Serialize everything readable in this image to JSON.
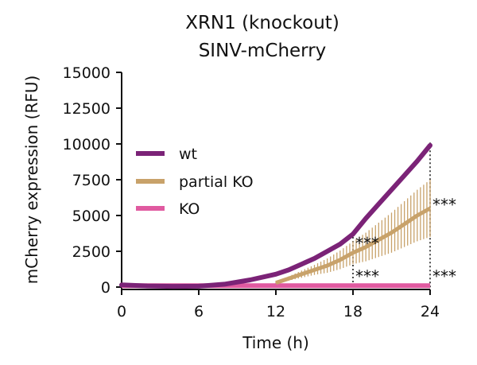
{
  "chart_data": {
    "type": "line",
    "title_lines": [
      "XRN1 (knockout)",
      "SINV-mCherry"
    ],
    "xlabel": "Time (h)",
    "ylabel": "mCherry expression (RFU)",
    "xlim": [
      0,
      24
    ],
    "ylim": [
      0,
      15000
    ],
    "x_ticks": [
      0,
      6,
      12,
      18,
      24
    ],
    "y_ticks": [
      0,
      2500,
      5000,
      7500,
      10000,
      12500,
      15000
    ],
    "x_tick_labels": [
      "0",
      "6",
      "12",
      "18",
      "24"
    ],
    "y_tick_labels": [
      "0",
      "2500",
      "5000",
      "7500",
      "10000",
      "12500",
      "15000"
    ],
    "grid": false,
    "legend_position": "left-center",
    "series": [
      {
        "name": "wt",
        "color": "#7b2377",
        "x": [
          0,
          2,
          4,
          6,
          8,
          10,
          12,
          13,
          14,
          15,
          16,
          17,
          18,
          19,
          20,
          21,
          22,
          23,
          24
        ],
        "y": [
          150,
          80,
          50,
          60,
          200,
          500,
          900,
          1200,
          1600,
          2000,
          2500,
          3000,
          3700,
          4800,
          5800,
          6800,
          7800,
          8800,
          9900
        ]
      },
      {
        "name": "partial KO",
        "color": "#c8a26a",
        "x": [
          12,
          13,
          14,
          15,
          16,
          17,
          18,
          19,
          20,
          21,
          22,
          23,
          24
        ],
        "y": [
          300,
          600,
          900,
          1200,
          1500,
          1900,
          2400,
          2800,
          3300,
          3800,
          4400,
          5000,
          5500
        ],
        "error": [
          50,
          150,
          250,
          350,
          500,
          650,
          800,
          1000,
          1200,
          1400,
          1600,
          1800,
          2000
        ]
      },
      {
        "name": "KO",
        "color": "#e05aa0",
        "x": [
          0,
          24
        ],
        "y": [
          100,
          100
        ]
      }
    ],
    "annotations": [
      {
        "text": "***",
        "x": 18,
        "y": 3000
      },
      {
        "text": "***",
        "x": 18,
        "y": 700
      },
      {
        "text": "***",
        "x": 24,
        "y": 5700
      },
      {
        "text": "***",
        "x": 24,
        "y": 700
      }
    ],
    "reference_lines_x": [
      18,
      24
    ]
  }
}
